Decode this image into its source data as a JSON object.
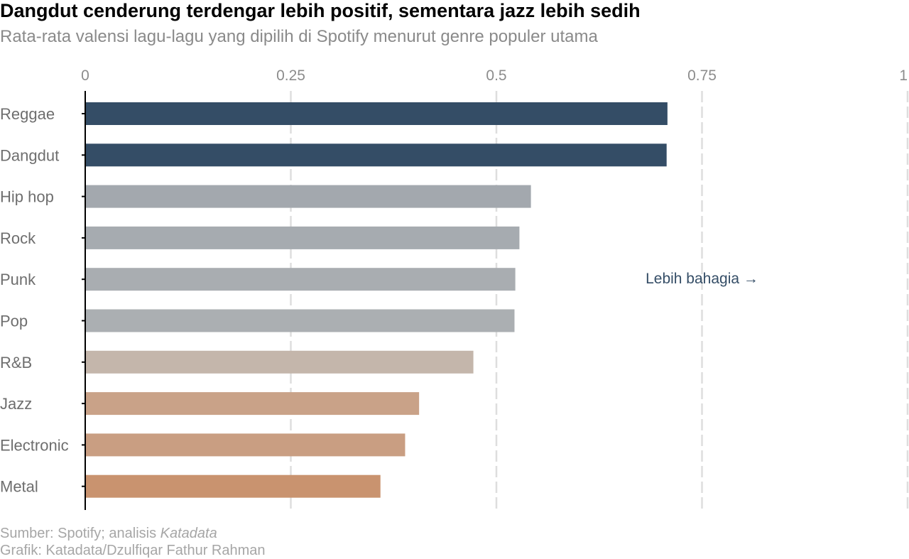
{
  "chart_data": {
    "type": "bar",
    "orientation": "horizontal",
    "title": "Dangdut cenderung terdengar lebih positif, sementara jazz lebih sedih",
    "subtitle": "Rata-rata valensi lagu-lagu yang dipilih di Spotify menurut genre populer utama",
    "categories": [
      "Reggae",
      "Dangdut",
      "Hip hop",
      "Rock",
      "Punk",
      "Pop",
      "R&B",
      "Jazz",
      "Electronic",
      "Metal"
    ],
    "values": [
      0.708,
      0.707,
      0.542,
      0.528,
      0.523,
      0.522,
      0.472,
      0.406,
      0.389,
      0.359
    ],
    "colors": [
      "#344d66",
      "#344d66",
      "#a3a8ae",
      "#a6abb0",
      "#a9adb1",
      "#abafb2",
      "#c4b6ab",
      "#c9a288",
      "#c99e82",
      "#c9936f"
    ],
    "xlim": [
      0,
      1
    ],
    "xticks": [
      0,
      0.25,
      0.5,
      0.75,
      1
    ],
    "xtick_labels": [
      "0",
      "0.25",
      "0.5",
      "0.75",
      "1"
    ],
    "tick_position": "top",
    "grid": "vertical dashed",
    "annotation": {
      "text": "Lebih bahagia →",
      "x": 0.75,
      "y_between": [
        "Punk",
        "Punk"
      ],
      "color": "#344d66"
    }
  },
  "footer": {
    "source_prefix": "Sumber: Spotify; analisis ",
    "source_italic": "Katadata",
    "credit": "Grafik: Katadata/Dzulfiqar Fathur Rahman"
  }
}
